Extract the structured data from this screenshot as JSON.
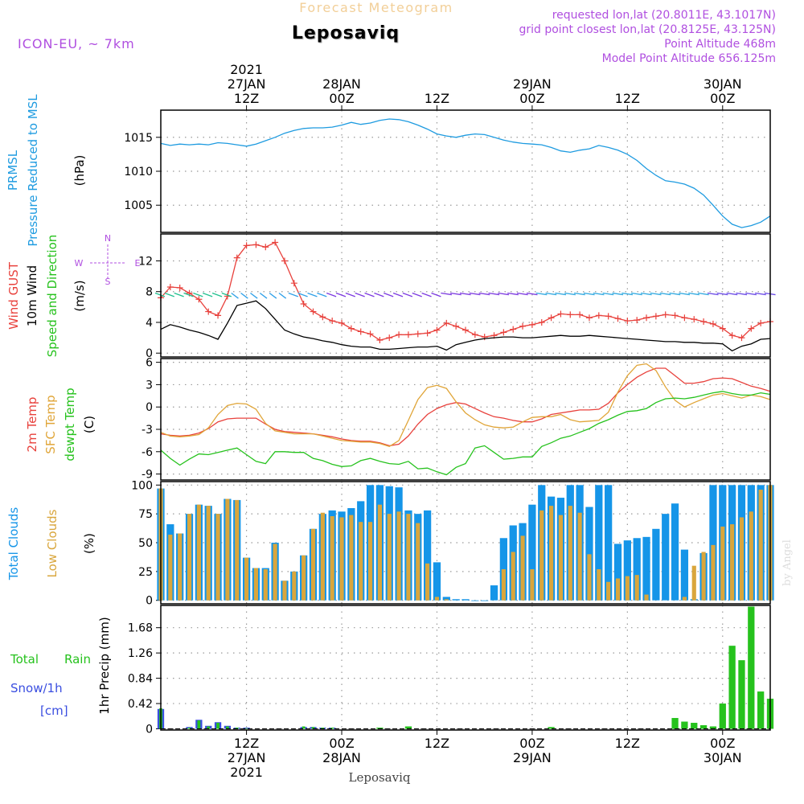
{
  "header": {
    "supertitle": "Forecast Meteogram",
    "location": "Leposaviq",
    "model": "ICON-EU,  ~ 7km",
    "requested": "requested lon,lat (20.8011E, 43.1017N)",
    "gridpoint": "grid point closest lon,lat (20.8125E, 43.125N)",
    "point_alt": "Point Altitude 468m",
    "model_alt": "Model Point Altitude 656.125m",
    "footer": "Leposaviq",
    "credit": "by Angel"
  },
  "time_axis": {
    "start_hour": 0,
    "end_hour": 64,
    "ticks": [
      {
        "h": 9,
        "top": [
          "2021",
          "27JAN",
          "12Z"
        ],
        "bottom": [
          "12Z",
          "27JAN",
          "2021"
        ]
      },
      {
        "h": 19,
        "top": [
          "28JAN",
          "00Z"
        ],
        "bottom": [
          "00Z",
          "28JAN"
        ]
      },
      {
        "h": 29,
        "top": [
          "12Z"
        ],
        "bottom": [
          "12Z"
        ]
      },
      {
        "h": 39,
        "top": [
          "29JAN",
          "00Z"
        ],
        "bottom": [
          "00Z",
          "29JAN"
        ]
      },
      {
        "h": 49,
        "top": [
          "12Z"
        ],
        "bottom": [
          "12Z"
        ]
      },
      {
        "h": 59,
        "top": [
          "30JAN",
          "00Z"
        ],
        "bottom": [
          "00Z",
          "30JAN"
        ]
      }
    ]
  },
  "panels": {
    "pressure": {
      "labels": [
        "PRMSL",
        "Pressure Reduced to MSL"
      ],
      "unit": "(hPa)"
    },
    "wind": {
      "labels": [
        "Wind GUST",
        "10m Wind",
        "Speed and Direction"
      ],
      "unit": "(m/s)",
      "compass": "N / W <-|-> E / S"
    },
    "temp": {
      "labels": [
        "2m Temp",
        "SFC Temp",
        "dewpt Temp"
      ],
      "unit": "(C)"
    },
    "clouds": {
      "labels": [
        "Total Clouds",
        "Low Clouds"
      ],
      "unit": "(%)"
    },
    "precip": {
      "labels": [
        "Total",
        "Rain",
        "Snow/1h",
        "[cm]"
      ],
      "ylabel": "1hr Precip (mm)"
    }
  },
  "colors": {
    "pressure": "#1e9be0",
    "gust": "#e8413c",
    "wind": "#000000",
    "t2m": "#e8413c",
    "sfc": "#e0a538",
    "dewpt": "#26c21d",
    "total_cloud": "#1595e8",
    "low_cloud": "#d9a63c",
    "rain": "#26c21d",
    "snow": "#3a4ee0",
    "title_purple": "#b04fe0",
    "supertitle": "#f2cf98"
  },
  "chart_data": [
    {
      "type": "line",
      "name": "PRMSL",
      "ylim": [
        1001,
        1019
      ],
      "yticks": [
        1005,
        1010,
        1015
      ],
      "x": [
        0,
        1,
        2,
        3,
        4,
        5,
        6,
        7,
        8,
        9,
        10,
        11,
        12,
        13,
        14,
        15,
        16,
        17,
        18,
        19,
        20,
        21,
        22,
        23,
        24,
        25,
        26,
        27,
        28,
        29,
        30,
        31,
        32,
        33,
        34,
        35,
        36,
        37,
        38,
        39,
        40,
        41,
        42,
        43,
        44,
        45,
        46,
        47,
        48,
        49,
        50,
        51,
        52,
        53,
        54,
        55,
        56,
        57,
        58,
        59,
        60,
        61,
        62,
        63,
        64
      ],
      "values": [
        1014.1,
        1013.8,
        1014.0,
        1013.9,
        1014.0,
        1013.9,
        1014.2,
        1014.1,
        1013.9,
        1013.7,
        1014.0,
        1014.5,
        1015.0,
        1015.6,
        1016.0,
        1016.3,
        1016.4,
        1016.4,
        1016.5,
        1016.8,
        1017.2,
        1016.9,
        1017.1,
        1017.5,
        1017.7,
        1017.6,
        1017.3,
        1016.8,
        1016.2,
        1015.5,
        1015.2,
        1015.0,
        1015.3,
        1015.5,
        1015.4,
        1015.0,
        1014.6,
        1014.3,
        1014.1,
        1014.0,
        1013.9,
        1013.5,
        1013.0,
        1012.8,
        1013.1,
        1013.3,
        1013.8,
        1013.5,
        1013.1,
        1012.5,
        1011.6,
        1010.4,
        1009.4,
        1008.6,
        1008.4,
        1008.1,
        1007.5,
        1006.5,
        1005.0,
        1003.4,
        1002.2,
        1001.7,
        1002.0,
        1002.5,
        1003.4
      ]
    },
    {
      "type": "line",
      "name": "Wind speed and gust",
      "ylim": [
        -0.5,
        15.5
      ],
      "yticks": [
        0,
        4,
        8,
        12
      ],
      "x": [
        0,
        1,
        2,
        3,
        4,
        5,
        6,
        7,
        8,
        9,
        10,
        11,
        12,
        13,
        14,
        15,
        16,
        17,
        18,
        19,
        20,
        21,
        22,
        23,
        24,
        25,
        26,
        27,
        28,
        29,
        30,
        31,
        32,
        33,
        34,
        35,
        36,
        37,
        38,
        39,
        40,
        41,
        42,
        43,
        44,
        45,
        46,
        47,
        48,
        49,
        50,
        51,
        52,
        53,
        54,
        55,
        56,
        57,
        58,
        59,
        60,
        61,
        62,
        63,
        64
      ],
      "series": [
        {
          "name": "Wind GUST",
          "values": [
            7.2,
            8.6,
            8.5,
            7.8,
            7.0,
            5.4,
            4.9,
            7.4,
            12.4,
            14.0,
            14.1,
            13.8,
            14.4,
            12.0,
            9.1,
            6.4,
            5.4,
            4.7,
            4.2,
            3.9,
            3.2,
            2.8,
            2.5,
            1.7,
            2.0,
            2.4,
            2.4,
            2.5,
            2.6,
            3.0,
            3.9,
            3.5,
            3.0,
            2.4,
            2.1,
            2.3,
            2.7,
            3.1,
            3.5,
            3.7,
            4.0,
            4.6,
            5.1,
            5.0,
            5.0,
            4.6,
            4.9,
            4.8,
            4.5,
            4.2,
            4.3,
            4.6,
            4.8,
            5.0,
            4.9,
            4.6,
            4.4,
            4.1,
            3.8,
            3.2,
            2.3,
            2.0,
            3.2,
            3.9,
            4.1
          ]
        },
        {
          "name": "10m Wind",
          "values": [
            3.1,
            3.7,
            3.4,
            3.0,
            2.7,
            2.3,
            1.8,
            3.9,
            6.2,
            6.5,
            6.8,
            5.8,
            4.4,
            3.0,
            2.5,
            2.1,
            1.9,
            1.6,
            1.4,
            1.1,
            0.9,
            0.8,
            0.8,
            0.5,
            0.5,
            0.6,
            0.7,
            0.8,
            0.8,
            0.9,
            0.4,
            1.1,
            1.4,
            1.7,
            1.9,
            2.0,
            2.1,
            2.1,
            2.0,
            2.0,
            2.1,
            2.2,
            2.3,
            2.2,
            2.2,
            2.3,
            2.2,
            2.1,
            2.0,
            1.9,
            1.8,
            1.7,
            1.6,
            1.5,
            1.5,
            1.4,
            1.4,
            1.3,
            1.3,
            1.2,
            0.3,
            0.9,
            1.2,
            1.8,
            1.9
          ]
        }
      ]
    },
    {
      "type": "line",
      "name": "Temperatures",
      "ylim": [
        -9.8,
        6.5
      ],
      "yticks": [
        -9,
        -6,
        -3,
        0,
        3,
        6
      ],
      "x": [
        0,
        1,
        2,
        3,
        4,
        5,
        6,
        7,
        8,
        9,
        10,
        11,
        12,
        13,
        14,
        15,
        16,
        17,
        18,
        19,
        20,
        21,
        22,
        23,
        24,
        25,
        26,
        27,
        28,
        29,
        30,
        31,
        32,
        33,
        34,
        35,
        36,
        37,
        38,
        39,
        40,
        41,
        42,
        43,
        44,
        45,
        46,
        47,
        48,
        49,
        50,
        51,
        52,
        53,
        54,
        55,
        56,
        57,
        58,
        59,
        60,
        61,
        62,
        63,
        64
      ],
      "series": [
        {
          "name": "2m Temp",
          "values": [
            -3.6,
            -3.8,
            -3.9,
            -3.8,
            -3.5,
            -2.9,
            -2.0,
            -1.6,
            -1.5,
            -1.5,
            -1.5,
            -2.3,
            -3.0,
            -3.3,
            -3.4,
            -3.5,
            -3.6,
            -3.8,
            -4.0,
            -4.3,
            -4.5,
            -4.6,
            -4.6,
            -4.8,
            -5.2,
            -5.0,
            -3.9,
            -2.3,
            -1.0,
            -0.2,
            0.3,
            0.6,
            0.4,
            -0.2,
            -0.8,
            -1.3,
            -1.5,
            -1.8,
            -2.0,
            -2.0,
            -1.6,
            -1.0,
            -0.8,
            -0.6,
            -0.4,
            -0.4,
            -0.3,
            0.5,
            1.9,
            3.0,
            4.0,
            4.7,
            5.2,
            5.2,
            4.2,
            3.2,
            3.2,
            3.4,
            3.8,
            3.9,
            3.8,
            3.3,
            2.8,
            2.5,
            2.1
          ]
        },
        {
          "name": "SFC Temp",
          "values": [
            -3.4,
            -3.9,
            -4.0,
            -3.9,
            -3.7,
            -2.8,
            -1.0,
            0.2,
            0.5,
            0.4,
            -0.3,
            -2.2,
            -3.2,
            -3.4,
            -3.6,
            -3.6,
            -3.6,
            -3.9,
            -4.2,
            -4.5,
            -4.6,
            -4.7,
            -4.7,
            -4.9,
            -5.3,
            -4.5,
            -1.8,
            1.0,
            2.6,
            2.9,
            2.5,
            0.7,
            -0.8,
            -1.7,
            -2.4,
            -2.7,
            -2.8,
            -2.7,
            -2.0,
            -1.4,
            -1.3,
            -1.3,
            -1.0,
            -1.7,
            -2.0,
            -1.9,
            -1.8,
            -0.7,
            2.0,
            4.2,
            5.6,
            5.8,
            4.9,
            2.7,
            0.9,
            0.0,
            0.6,
            1.1,
            1.6,
            1.8,
            1.5,
            1.2,
            1.6,
            1.4,
            1.0
          ]
        },
        {
          "name": "dewpt Temp",
          "values": [
            -5.8,
            -6.9,
            -7.8,
            -7.0,
            -6.3,
            -6.4,
            -6.1,
            -5.8,
            -5.5,
            -6.4,
            -7.3,
            -7.6,
            -6.0,
            -6.0,
            -6.1,
            -6.1,
            -6.9,
            -7.2,
            -7.7,
            -8.0,
            -7.9,
            -7.2,
            -6.9,
            -7.3,
            -7.6,
            -7.7,
            -7.3,
            -8.3,
            -8.2,
            -8.7,
            -9.1,
            -8.1,
            -7.6,
            -5.5,
            -5.2,
            -6.1,
            -7.0,
            -6.9,
            -6.7,
            -6.7,
            -5.3,
            -4.8,
            -4.2,
            -3.9,
            -3.4,
            -2.9,
            -2.2,
            -1.7,
            -1.1,
            -0.6,
            -0.5,
            -0.2,
            0.6,
            1.1,
            1.2,
            1.1,
            1.3,
            1.6,
            1.9,
            2.1,
            1.8,
            1.6,
            1.6,
            1.9,
            1.7
          ]
        }
      ]
    },
    {
      "type": "bar",
      "name": "Clouds",
      "ylim": [
        -3,
        103
      ],
      "yticks": [
        0,
        25,
        50,
        75,
        100
      ],
      "x": [
        0,
        1,
        2,
        3,
        4,
        5,
        6,
        7,
        8,
        9,
        10,
        11,
        12,
        13,
        14,
        15,
        16,
        17,
        18,
        19,
        20,
        21,
        22,
        23,
        24,
        25,
        26,
        27,
        28,
        29,
        30,
        31,
        32,
        33,
        34,
        35,
        36,
        37,
        38,
        39,
        40,
        41,
        42,
        43,
        44,
        45,
        46,
        47,
        48,
        49,
        50,
        51,
        52,
        53,
        54,
        55,
        56,
        57,
        58,
        59,
        60,
        61,
        62,
        63,
        64
      ],
      "series": [
        {
          "name": "Total Clouds",
          "values": [
            97,
            66,
            58,
            75,
            83,
            82,
            75,
            88,
            87,
            37,
            28,
            28,
            50,
            17,
            25,
            39,
            62,
            75,
            78,
            77,
            80,
            86,
            100,
            100,
            99,
            98,
            78,
            75,
            78,
            33,
            3,
            1,
            1,
            0,
            0,
            13,
            54,
            65,
            67,
            83,
            100,
            90,
            89,
            100,
            100,
            81,
            100,
            100,
            49,
            52,
            54,
            55,
            62,
            75,
            84,
            44,
            1,
            41,
            100,
            100,
            100,
            100,
            100,
            100,
            100
          ]
        },
        {
          "name": "Low Clouds",
          "values": [
            97,
            57,
            58,
            75,
            83,
            82,
            75,
            88,
            87,
            37,
            28,
            27,
            49,
            17,
            25,
            39,
            62,
            76,
            73,
            72,
            74,
            68,
            68,
            83,
            75,
            77,
            75,
            67,
            32,
            3,
            1,
            0,
            0,
            0,
            0,
            0,
            27,
            42,
            56,
            27,
            78,
            82,
            74,
            82,
            76,
            40,
            27,
            16,
            19,
            21,
            22,
            5,
            0,
            0,
            0,
            3,
            30,
            42,
            48,
            64,
            66,
            72,
            77,
            96,
            100
          ]
        }
      ]
    },
    {
      "type": "bar",
      "name": "1hr Precip",
      "ylim": [
        -0.02,
        2.05
      ],
      "yticks": [
        0,
        0.42,
        0.84,
        1.26,
        1.68
      ],
      "ylabel": "1hr Precip (mm)",
      "x": [
        0,
        1,
        2,
        3,
        4,
        5,
        6,
        7,
        8,
        9,
        10,
        11,
        12,
        13,
        14,
        15,
        16,
        17,
        18,
        19,
        20,
        21,
        22,
        23,
        24,
        25,
        26,
        27,
        28,
        29,
        30,
        31,
        32,
        33,
        34,
        35,
        36,
        37,
        38,
        39,
        40,
        41,
        42,
        43,
        44,
        45,
        46,
        47,
        48,
        49,
        50,
        51,
        52,
        53,
        54,
        55,
        56,
        57,
        58,
        59,
        60,
        61,
        62,
        63,
        64
      ],
      "series": [
        {
          "name": "Total Rain",
          "values": [
            0.34,
            0,
            0,
            0.02,
            0.14,
            0.04,
            0.1,
            0.04,
            0.02,
            0.01,
            0,
            0,
            0,
            0,
            0,
            0.04,
            0.03,
            0.02,
            0.02,
            0,
            0,
            0,
            0,
            0.02,
            0,
            0,
            0.04,
            0,
            0,
            0,
            0,
            0,
            0,
            0,
            0,
            0,
            0,
            0,
            0,
            0,
            0,
            0.03,
            0,
            0,
            0,
            0,
            0,
            0,
            0,
            0,
            0,
            0,
            0,
            0,
            0.18,
            0.12,
            0.1,
            0.06,
            0.04,
            0.42,
            1.38,
            1.14,
            2.03,
            0.62,
            0.5
          ]
        },
        {
          "name": "Snow/1h",
          "values": [
            0.33,
            0,
            0,
            0.03,
            0.15,
            0.05,
            0.11,
            0.05,
            0.02,
            0.02,
            0,
            0,
            0,
            0,
            0,
            0.03,
            0.03,
            0.02,
            0.02,
            0,
            0,
            0,
            0,
            0,
            0,
            0,
            0,
            0,
            0,
            0,
            0,
            0,
            0,
            0,
            0,
            0,
            0,
            0,
            0,
            0,
            0,
            0,
            0,
            0,
            0,
            0,
            0,
            0,
            0,
            0,
            0,
            0,
            0,
            0,
            0,
            0,
            0,
            0,
            0,
            0,
            0,
            0,
            0,
            0,
            0
          ]
        }
      ]
    }
  ]
}
